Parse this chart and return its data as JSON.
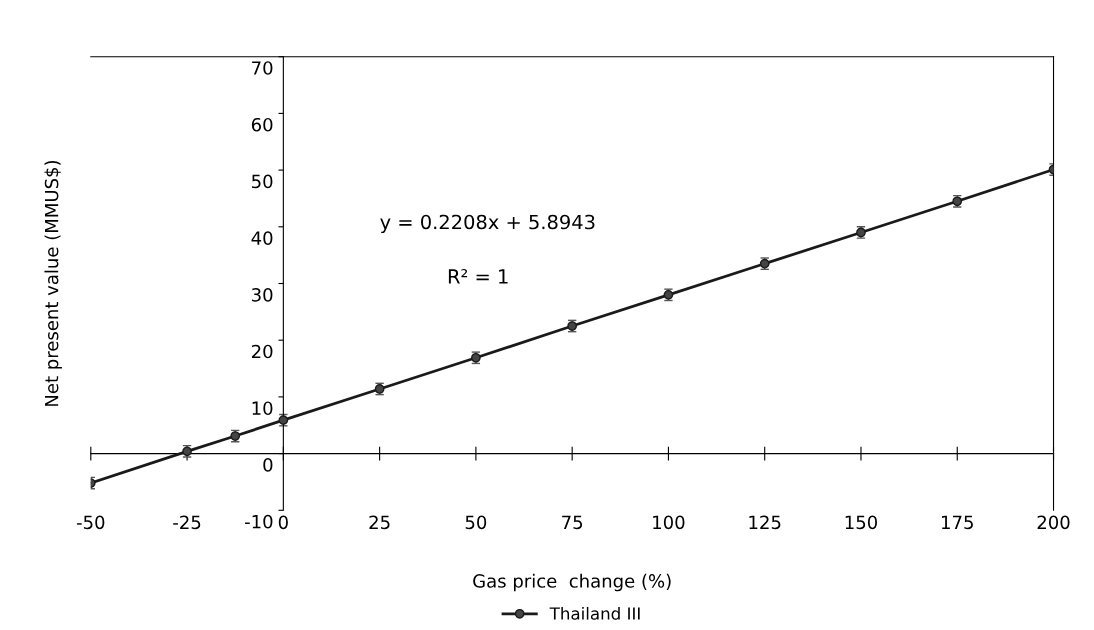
{
  "chart_data": {
    "type": "line",
    "xlabel": "Gas price  change (%)",
    "ylabel": "Net present value (MMUS$)",
    "x": [
      -50,
      -25,
      -12.5,
      0,
      25,
      50,
      75,
      100,
      125,
      150,
      175,
      200
    ],
    "series": [
      {
        "name": "Thailand III",
        "color": "#1a1a1a",
        "values": [
          -5.2,
          0.4,
          3.1,
          5.9,
          11.4,
          16.9,
          22.5,
          28,
          33.5,
          39,
          44.5,
          50.1
        ],
        "errors": [
          1,
          1,
          1,
          1,
          1,
          1,
          1,
          1,
          1,
          1,
          1,
          1
        ]
      }
    ],
    "xlim": [
      -50,
      200
    ],
    "xticks": [
      -50,
      -25,
      0,
      25,
      50,
      75,
      100,
      125,
      150,
      175,
      200
    ],
    "ylim": [
      -10,
      70
    ],
    "yticks": [
      -10,
      0,
      10,
      20,
      30,
      40,
      50,
      60,
      70
    ],
    "annotations": [
      "y = 0.2208x + 5.8943",
      "R² = 1"
    ],
    "marker": "circle",
    "line_style": "solid",
    "legend": "bottom"
  }
}
